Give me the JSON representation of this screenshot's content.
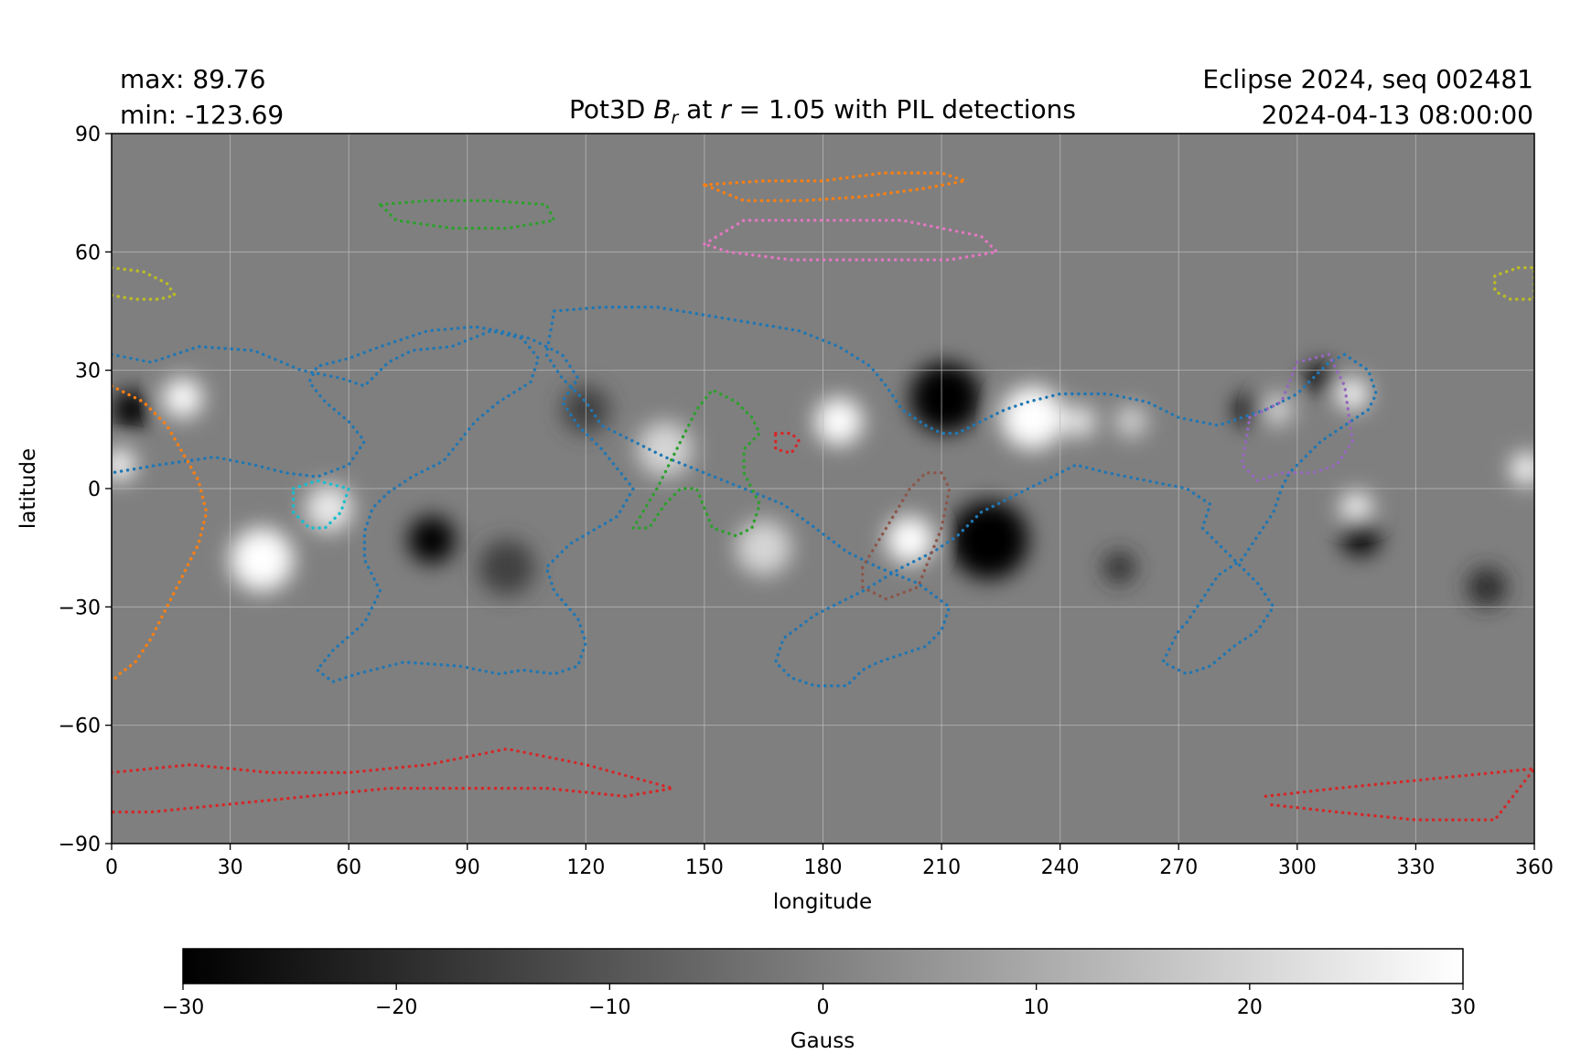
{
  "header": {
    "max_label": "max:  89.76",
    "min_label": "min:  -123.69",
    "title_prefix": "Pot3D ",
    "title_var": "B",
    "title_sub": "r",
    "title_mid": " at ",
    "title_r": "r",
    "title_suffix": " = 1.05 with PIL detections",
    "event": "Eclipse 2024, seq 002481",
    "timestamp": "2024-04-13 08:00:00"
  },
  "chart_data": {
    "type": "heatmap",
    "xlabel": "longitude",
    "ylabel": "latitude",
    "xlim": [
      0,
      360
    ],
    "ylim": [
      -90,
      90
    ],
    "xticks": [
      0,
      30,
      60,
      90,
      120,
      150,
      180,
      210,
      240,
      270,
      300,
      330,
      360
    ],
    "yticks": [
      -90,
      -60,
      -30,
      0,
      30,
      60,
      90
    ],
    "grid": true,
    "colormap": "grayscale",
    "colorbar": {
      "label": "Gauss",
      "min": -30,
      "max": 30,
      "ticks": [
        -30,
        -20,
        -10,
        0,
        10,
        20,
        30
      ],
      "tick_labels": [
        "−30",
        "−20",
        "−10",
        "0",
        "10",
        "20",
        "30"
      ]
    },
    "field_blobs": [
      {
        "lon": 222,
        "lat": -13,
        "value": -120,
        "r": 10
      },
      {
        "lon": 211,
        "lat": 23,
        "value": -80,
        "r": 9
      },
      {
        "lon": 233,
        "lat": 18,
        "value": 85,
        "r": 8
      },
      {
        "lon": 202,
        "lat": -13,
        "value": 70,
        "r": 6
      },
      {
        "lon": 184,
        "lat": 17,
        "value": 40,
        "r": 6
      },
      {
        "lon": 81,
        "lat": -13,
        "value": -45,
        "r": 6
      },
      {
        "lon": 5,
        "lat": 20,
        "value": -30,
        "r": 5
      },
      {
        "lon": 2,
        "lat": 6,
        "value": 45,
        "r": 4
      },
      {
        "lon": 18,
        "lat": 23,
        "value": 35,
        "r": 5
      },
      {
        "lon": 38,
        "lat": -18,
        "value": 30,
        "r": 8
      },
      {
        "lon": 55,
        "lat": -5,
        "value": 25,
        "r": 6
      },
      {
        "lon": 288,
        "lat": 20,
        "value": -45,
        "r": 4
      },
      {
        "lon": 306,
        "lat": 28,
        "value": -40,
        "r": 4
      },
      {
        "lon": 314,
        "lat": 24,
        "value": 40,
        "r": 4
      },
      {
        "lon": 315,
        "lat": -5,
        "value": 30,
        "r": 4
      },
      {
        "lon": 316,
        "lat": -12,
        "value": -30,
        "r": 5
      },
      {
        "lon": 358,
        "lat": 5,
        "value": 40,
        "r": 4
      },
      {
        "lon": 245,
        "lat": 17,
        "value": 25,
        "r": 4
      },
      {
        "lon": 258,
        "lat": 17,
        "value": 20,
        "r": 4
      },
      {
        "lon": 295,
        "lat": 20,
        "value": 20,
        "r": 4
      },
      {
        "lon": 140,
        "lat": 10,
        "value": 20,
        "r": 7
      },
      {
        "lon": 165,
        "lat": -15,
        "value": 20,
        "r": 7
      },
      {
        "lon": 255,
        "lat": -20,
        "value": -20,
        "r": 4
      },
      {
        "lon": 348,
        "lat": -25,
        "value": -20,
        "r": 5
      },
      {
        "lon": 120,
        "lat": 20,
        "value": -15,
        "r": 6
      },
      {
        "lon": 100,
        "lat": -20,
        "value": -15,
        "r": 7
      }
    ],
    "pil_detections": [
      {
        "color": "#1f77b4",
        "lon": [
          0,
          10,
          22,
          36,
          48,
          58,
          64,
          70,
          76,
          86,
          96,
          104,
          108,
          106,
          98,
          92,
          88,
          84,
          76,
          70,
          66,
          64,
          64,
          68,
          64,
          56,
          52,
          56,
          62,
          74,
          88,
          98,
          104,
          112,
          118,
          120,
          118,
          112,
          110,
          116,
          128,
          132,
          128,
          124,
          118,
          114,
          118,
          114,
          106,
          98,
          92,
          80,
          68,
          60,
          52,
          50,
          54,
          60,
          64,
          60,
          52,
          44,
          36,
          26,
          12,
          0
        ],
        "lat": [
          34,
          32,
          36,
          35,
          30,
          28,
          26,
          32,
          35,
          36,
          40,
          38,
          33,
          27,
          22,
          17,
          12,
          7,
          3,
          -1,
          -5,
          -11,
          -18,
          -26,
          -34,
          -41,
          -46,
          -49,
          -47,
          -44,
          -45,
          -47,
          -46,
          -47,
          -45,
          -39,
          -33,
          -26,
          -20,
          -14,
          -7,
          0,
          5,
          10,
          16,
          22,
          28,
          34,
          38,
          40,
          41,
          40,
          36,
          33,
          31,
          27,
          22,
          17,
          12,
          6,
          3,
          4,
          6,
          8,
          6,
          4
        ]
      },
      {
        "color": "#1f77b4",
        "lon": [
          112,
          124,
          138,
          150,
          162,
          174,
          184,
          192,
          196,
          200,
          206,
          210,
          214,
          218,
          222,
          226,
          232,
          240,
          252,
          262,
          270,
          280,
          292,
          300,
          304,
          308,
          312,
          318,
          320,
          318,
          312,
          306,
          302,
          298,
          296,
          294,
          290,
          286,
          280,
          276,
          272,
          270,
          268,
          266,
          272,
          278,
          284,
          290,
          294,
          290,
          284,
          280,
          276,
          278,
          272,
          262,
          252,
          244,
          236,
          228,
          220,
          214,
          208,
          200,
          190,
          178,
          170,
          168,
          172,
          178,
          186,
          190,
          194,
          200,
          206,
          210,
          212,
          204,
          194,
          186,
          178,
          170,
          160,
          150,
          140,
          132,
          124,
          120,
          114,
          110,
          112
        ],
        "lat": [
          45,
          46,
          46,
          44,
          42,
          40,
          36,
          31,
          26,
          20,
          16,
          14,
          14,
          16,
          18,
          20,
          22,
          24,
          24,
          22,
          18,
          16,
          20,
          24,
          28,
          32,
          34,
          30,
          24,
          20,
          16,
          12,
          8,
          4,
          0,
          -6,
          -12,
          -18,
          -22,
          -28,
          -34,
          -36,
          -40,
          -44,
          -47,
          -45,
          -40,
          -36,
          -30,
          -24,
          -18,
          -14,
          -10,
          -4,
          0,
          2,
          4,
          6,
          2,
          -2,
          -6,
          -12,
          -16,
          -20,
          -26,
          -32,
          -38,
          -44,
          -48,
          -50,
          -50,
          -46,
          -44,
          -42,
          -40,
          -36,
          -30,
          -24,
          -20,
          -16,
          -10,
          -4,
          0,
          4,
          8,
          12,
          16,
          22,
          28,
          34,
          45
        ]
      },
      {
        "color": "#ff7f0e",
        "lon": [
          0,
          8,
          14,
          18,
          22,
          24,
          22,
          18,
          14,
          10,
          6,
          2,
          0
        ],
        "lat": [
          26,
          22,
          16,
          9,
          2,
          -6,
          -14,
          -22,
          -30,
          -38,
          -44,
          -47,
          -49
        ]
      },
      {
        "color": "#ff7f0e",
        "lon": [
          150,
          165,
          180,
          195,
          210,
          216,
          205,
          190,
          175,
          160,
          150
        ],
        "lat": [
          77,
          78,
          78,
          80,
          80,
          78,
          76,
          74,
          73,
          73,
          77
        ]
      },
      {
        "color": "#2ca02c",
        "lon": [
          68,
          80,
          96,
          110,
          112,
          100,
          86,
          72,
          68
        ],
        "lat": [
          72,
          73,
          73,
          72,
          68,
          66,
          66,
          68,
          72
        ]
      },
      {
        "color": "#2ca02c",
        "lon": [
          132,
          138,
          143,
          148,
          152,
          158,
          162,
          164,
          160,
          160,
          164,
          162,
          158,
          152,
          148,
          144,
          140,
          136,
          132
        ],
        "lat": [
          -10,
          0,
          10,
          20,
          25,
          22,
          18,
          14,
          10,
          4,
          -4,
          -10,
          -12,
          -10,
          0,
          0,
          -4,
          -10,
          -10
        ]
      },
      {
        "color": "#d62728",
        "lon": [
          168,
          172,
          174,
          172,
          168,
          168
        ],
        "lat": [
          14,
          14,
          12,
          9,
          10,
          14
        ]
      },
      {
        "color": "#9467bd",
        "lon": [
          288,
          296,
          300,
          308,
          312,
          314,
          310,
          304,
          296,
          290,
          286,
          288
        ],
        "lat": [
          18,
          22,
          32,
          34,
          26,
          12,
          6,
          4,
          4,
          2,
          6,
          18
        ]
      },
      {
        "color": "#8c564b",
        "lon": [
          190,
          196,
          202,
          206,
          210,
          212,
          210,
          204,
          196,
          190,
          190
        ],
        "lat": [
          -20,
          -10,
          0,
          4,
          4,
          0,
          -10,
          -25,
          -28,
          -25,
          -20
        ]
      },
      {
        "color": "#e377c2",
        "lon": [
          150,
          160,
          180,
          200,
          220,
          224,
          212,
          192,
          172,
          156,
          150
        ],
        "lat": [
          62,
          68,
          68,
          68,
          64,
          60,
          58,
          58,
          58,
          60,
          62
        ]
      },
      {
        "color": "#17becf",
        "lon": [
          46,
          52,
          60,
          58,
          54,
          50,
          46,
          46
        ],
        "lat": [
          0,
          2,
          0,
          -6,
          -10,
          -10,
          -6,
          0
        ]
      },
      {
        "color": "#bcbd22",
        "lon": [
          0,
          8,
          14,
          16,
          12,
          6,
          0
        ],
        "lat": [
          56,
          55,
          52,
          49,
          48,
          48,
          49
        ]
      },
      {
        "color": "#bcbd22",
        "lon": [
          356,
          360,
          360,
          354,
          350,
          350,
          356
        ],
        "lat": [
          56,
          56,
          48,
          48,
          50,
          54,
          56
        ]
      },
      {
        "color": "#d62728",
        "lon": [
          0,
          20,
          40,
          60,
          80,
          100,
          120,
          142,
          130,
          110,
          90,
          70,
          50,
          30,
          10,
          0
        ],
        "lat": [
          -72,
          -70,
          -72,
          -72,
          -70,
          -66,
          -70,
          -76,
          -78,
          -76,
          -76,
          -76,
          -78,
          -80,
          -82,
          -82
        ]
      },
      {
        "color": "#d62728",
        "lon": [
          292,
          310,
          330,
          350,
          360,
          350,
          330,
          310,
          292
        ],
        "lat": [
          -78,
          -76,
          -74,
          -72,
          -71,
          -84,
          -84,
          -82,
          -80
        ]
      }
    ]
  }
}
